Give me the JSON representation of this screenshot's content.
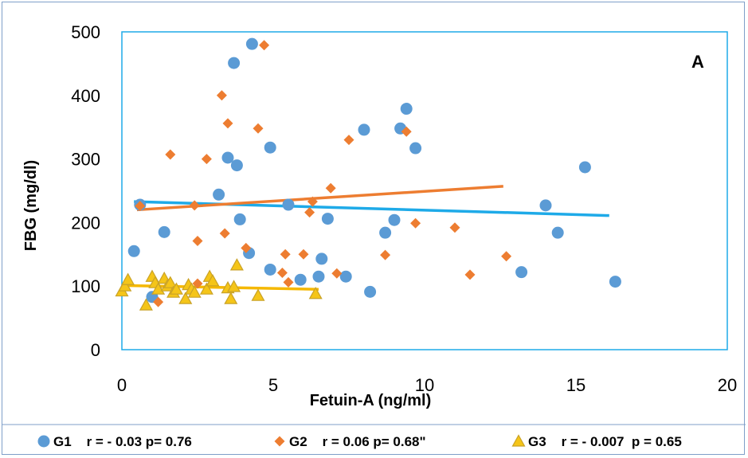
{
  "chart_data": {
    "type": "scatter",
    "panel_label": "A",
    "xlabel": "Fetuin-A  (ng/ml)",
    "ylabel": "FBG (mg/dl)",
    "xlim": [
      0,
      20
    ],
    "ylim": [
      0,
      500
    ],
    "xticks": [
      0,
      5,
      10,
      15,
      20
    ],
    "yticks": [
      0,
      100,
      200,
      300,
      400,
      500
    ],
    "grid": false,
    "legend_position": "bottom",
    "series": [
      {
        "name": "G1    r = - 0.03 p= 0.76",
        "marker": "circle",
        "color": "#5b9bd5",
        "trend_color": "#1eaae8",
        "trendline": [
          [
            0.4,
            233
          ],
          [
            16.1,
            211
          ]
        ],
        "points": [
          [
            0.4,
            155
          ],
          [
            0.6,
            228
          ],
          [
            1.4,
            185
          ],
          [
            1.0,
            83
          ],
          [
            3.2,
            244
          ],
          [
            3.5,
            302
          ],
          [
            3.7,
            451
          ],
          [
            3.8,
            290
          ],
          [
            3.9,
            205
          ],
          [
            4.2,
            152
          ],
          [
            4.3,
            481
          ],
          [
            4.9,
            318
          ],
          [
            4.9,
            126
          ],
          [
            5.5,
            228
          ],
          [
            5.9,
            110
          ],
          [
            6.5,
            115
          ],
          [
            6.6,
            143
          ],
          [
            6.8,
            206
          ],
          [
            7.4,
            115
          ],
          [
            8.0,
            346
          ],
          [
            8.2,
            91
          ],
          [
            8.7,
            184
          ],
          [
            9.0,
            204
          ],
          [
            9.2,
            348
          ],
          [
            9.4,
            379
          ],
          [
            9.7,
            317
          ],
          [
            13.2,
            122
          ],
          [
            14.0,
            227
          ],
          [
            14.4,
            184
          ],
          [
            15.3,
            287
          ],
          [
            16.3,
            107
          ]
        ]
      },
      {
        "name": "G2    r = 0.06 p= 0.68\"",
        "marker": "diamond",
        "color": "#ed7d31",
        "trend_color": "#ed7d31",
        "trendline": [
          [
            0.5,
            220
          ],
          [
            12.6,
            257
          ]
        ],
        "points": [
          [
            0.6,
            226
          ],
          [
            1.2,
            75
          ],
          [
            1.6,
            307
          ],
          [
            2.4,
            227
          ],
          [
            2.5,
            104
          ],
          [
            2.5,
            171
          ],
          [
            2.8,
            300
          ],
          [
            3.3,
            400
          ],
          [
            3.4,
            183
          ],
          [
            3.5,
            356
          ],
          [
            4.1,
            160
          ],
          [
            4.5,
            348
          ],
          [
            4.7,
            479
          ],
          [
            5.3,
            121
          ],
          [
            5.4,
            150
          ],
          [
            5.5,
            106
          ],
          [
            6.0,
            150
          ],
          [
            6.2,
            216
          ],
          [
            6.3,
            233
          ],
          [
            6.9,
            254
          ],
          [
            7.1,
            120
          ],
          [
            7.5,
            330
          ],
          [
            8.7,
            149
          ],
          [
            9.4,
            343
          ],
          [
            9.7,
            199
          ],
          [
            11.0,
            192
          ],
          [
            11.5,
            118
          ],
          [
            12.7,
            147
          ]
        ]
      },
      {
        "name": "G3    r = - 0.007  p = 0.65",
        "marker": "triangle",
        "color": "#f5c518",
        "trend_color": "#f5b800",
        "trendline": [
          [
            0.0,
            101
          ],
          [
            6.5,
            95
          ]
        ],
        "points": [
          [
            0.0,
            92
          ],
          [
            0.1,
            100
          ],
          [
            0.2,
            110
          ],
          [
            0.8,
            70
          ],
          [
            1.0,
            115
          ],
          [
            1.1,
            105
          ],
          [
            1.2,
            95
          ],
          [
            1.4,
            112
          ],
          [
            1.5,
            100
          ],
          [
            1.6,
            105
          ],
          [
            1.7,
            90
          ],
          [
            1.8,
            95
          ],
          [
            2.1,
            80
          ],
          [
            2.2,
            102
          ],
          [
            2.3,
            95
          ],
          [
            2.4,
            90
          ],
          [
            2.8,
            95
          ],
          [
            2.9,
            115
          ],
          [
            3.0,
            108
          ],
          [
            3.5,
            97
          ],
          [
            3.6,
            80
          ],
          [
            3.7,
            99
          ],
          [
            3.8,
            133
          ],
          [
            4.5,
            85
          ],
          [
            6.4,
            88
          ]
        ]
      }
    ]
  }
}
